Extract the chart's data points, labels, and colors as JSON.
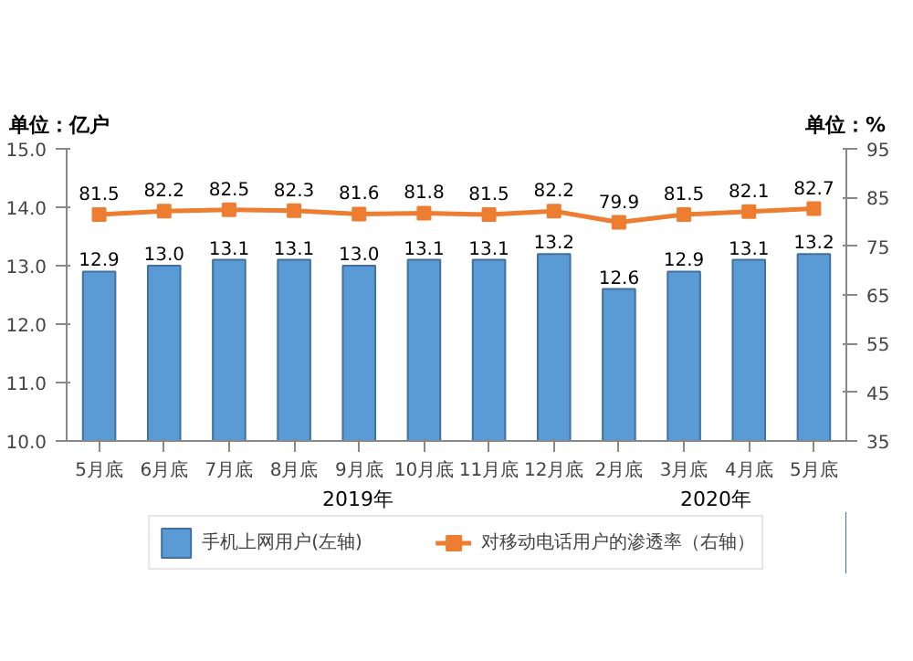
{
  "chart_data": {
    "type": "bar",
    "ylabel": "单位：亿户",
    "y2label": "单位：%",
    "categories": [
      "5月底",
      "6月底",
      "7月底",
      "8月底",
      "9月底",
      "10月底",
      "11月底",
      "12月底",
      "2月底",
      "3月底",
      "4月底",
      "5月底"
    ],
    "series": [
      {
        "name": "手机上网用户(左轴)",
        "color": "#5b9bd5",
        "values": [
          12.9,
          13.0,
          13.1,
          13.1,
          13.0,
          13.1,
          13.1,
          13.2,
          12.6,
          12.9,
          13.1,
          13.2
        ],
        "value_labels": [
          "12.9",
          "13.0",
          "13.1",
          "13.1",
          "13.0",
          "13.1",
          "13.1",
          "13.2",
          "12.6",
          "12.9",
          "13.1",
          "13.2"
        ]
      },
      {
        "name": "对移动电话用户的渗透率（右轴）",
        "type": "line",
        "axis": "y2",
        "color": "#ed7d31",
        "marker": "square",
        "values": [
          81.5,
          82.2,
          82.5,
          82.3,
          81.6,
          81.8,
          81.5,
          82.2,
          79.9,
          81.5,
          82.1,
          82.7
        ]
      }
    ],
    "ylim": [
      10.0,
      15.0
    ],
    "yticks": [
      {
        "value": 10,
        "label": "10.0"
      },
      {
        "value": 11,
        "label": "11.0"
      },
      {
        "value": 12,
        "label": "12.0"
      },
      {
        "value": 13,
        "label": "13.0"
      },
      {
        "value": 14,
        "label": "14.0"
      },
      {
        "value": 15,
        "label": "15.0"
      }
    ],
    "y2lim": [
      35,
      95
    ],
    "y2ticks": [
      35,
      45,
      55,
      65,
      75,
      85,
      95
    ],
    "data_labels": true,
    "legend": "bottom",
    "grid": false,
    "annotations": [
      "2019年",
      "2020年"
    ]
  }
}
